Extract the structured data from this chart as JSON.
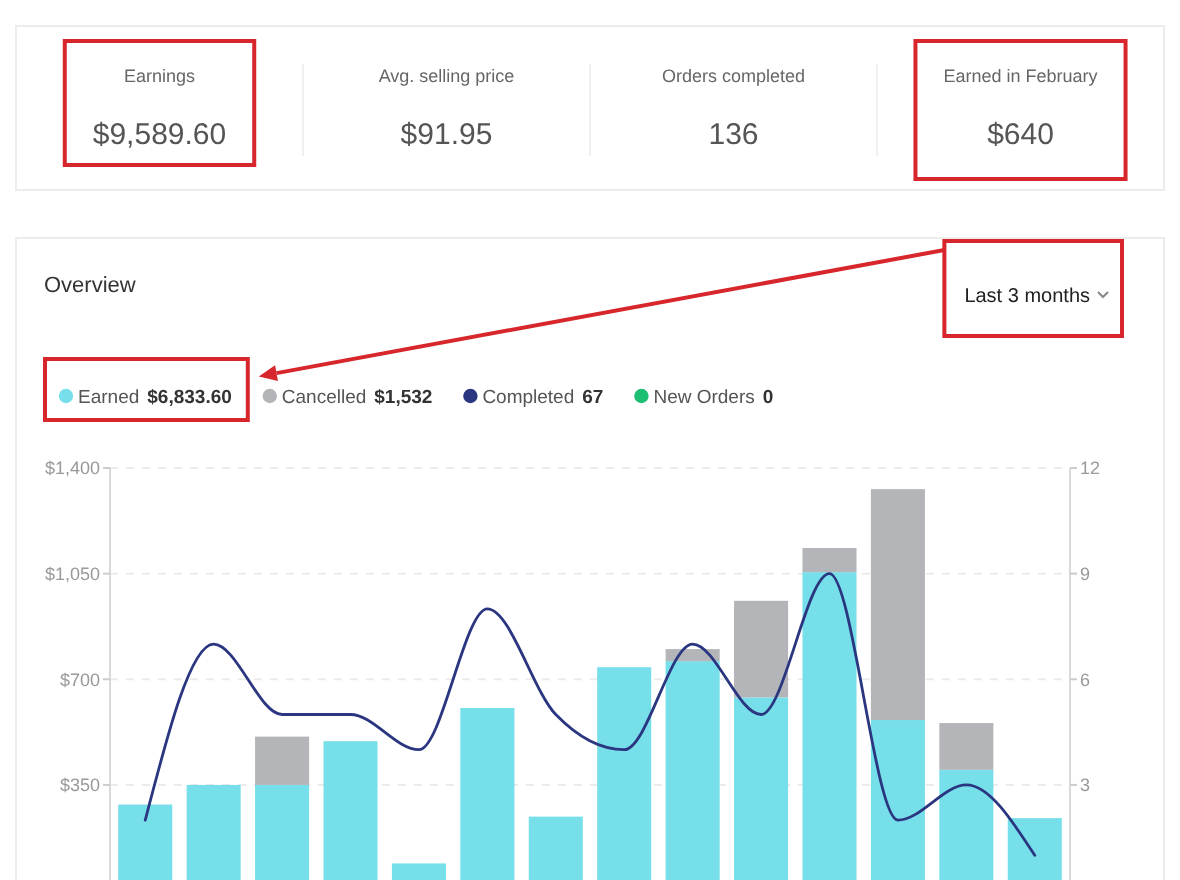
{
  "chart_data": [
    {
      "type": "other",
      "annotations": [
        "Earnings",
        "$9,589.60",
        "Avg. selling price",
        "$91.95",
        "Orders completed",
        "136",
        "Earned in February",
        "$640"
      ]
    },
    {
      "type": "bar",
      "title": "Overview",
      "annotations": [
        "Last 3 months"
      ],
      "categories": [
        null,
        null,
        null,
        null,
        null,
        null,
        null,
        null,
        null,
        null,
        null,
        null,
        null,
        null
      ],
      "stacked": true,
      "series": [
        {
          "name": "Earned $6,833.60",
          "color": "#76dfe9",
          "values": [
            285,
            350,
            350,
            495,
            90,
            605,
            245,
            740,
            760,
            640,
            1055,
            565,
            400,
            240
          ]
        },
        {
          "name": "Cancelled $1,532",
          "color": "#b4b5b9",
          "values": [
            null,
            null,
            160,
            null,
            null,
            null,
            null,
            null,
            40,
            320,
            80,
            765,
            155,
            null
          ]
        },
        {
          "name": "Completed 67",
          "type": "line",
          "axis": "y2",
          "color": "#2a3680",
          "values": [
            2,
            7,
            5,
            5,
            4,
            8,
            5,
            4,
            7,
            5,
            9,
            2,
            3,
            1
          ]
        },
        {
          "name": "New Orders 0",
          "type": "line",
          "axis": "y2",
          "color": "#1dbf73",
          "values": [
            null,
            null,
            null,
            null,
            null,
            null,
            null,
            null,
            null,
            null,
            null,
            null,
            null,
            null
          ]
        }
      ],
      "ylim": [
        35,
        1400
      ],
      "yticks": [
        {
          "value": 350,
          "label": "$350"
        },
        {
          "value": 700,
          "label": "$700"
        },
        {
          "value": 1050,
          "label": "$1,050"
        },
        {
          "value": 1400,
          "label": "$1,400"
        }
      ],
      "y2lim": [
        0.3,
        12
      ],
      "y2ticks": [
        3,
        6,
        9,
        12
      ],
      "grid": "y",
      "legend": "top left"
    }
  ]
}
